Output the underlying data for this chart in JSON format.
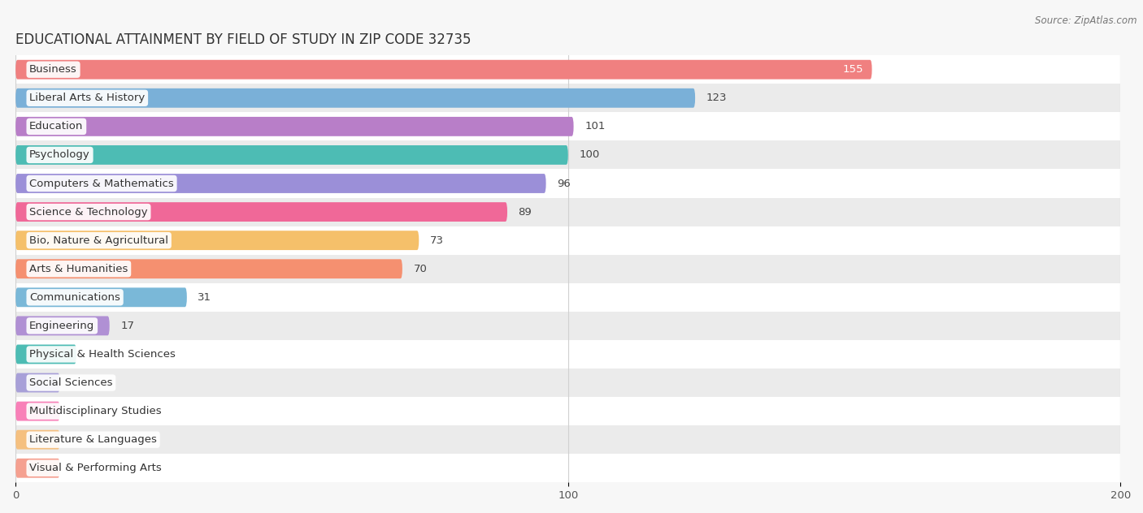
{
  "title": "EDUCATIONAL ATTAINMENT BY FIELD OF STUDY IN ZIP CODE 32735",
  "source": "Source: ZipAtlas.com",
  "categories": [
    "Business",
    "Liberal Arts & History",
    "Education",
    "Psychology",
    "Computers & Mathematics",
    "Science & Technology",
    "Bio, Nature & Agricultural",
    "Arts & Humanities",
    "Communications",
    "Engineering",
    "Physical & Health Sciences",
    "Social Sciences",
    "Multidisciplinary Studies",
    "Literature & Languages",
    "Visual & Performing Arts"
  ],
  "values": [
    155,
    123,
    101,
    100,
    96,
    89,
    73,
    70,
    31,
    17,
    11,
    0,
    0,
    0,
    0
  ],
  "colors": [
    "#f08080",
    "#7ab0d8",
    "#b87ec8",
    "#4dbcb4",
    "#9b8fd8",
    "#f06898",
    "#f5c06a",
    "#f59070",
    "#7ab8d8",
    "#b090d4",
    "#4dbcb4",
    "#a8a0d8",
    "#f880b8",
    "#f5c080",
    "#f5a090"
  ],
  "xlim": [
    0,
    200
  ],
  "xticks": [
    0,
    100,
    200
  ],
  "bar_height": 0.68,
  "background_color": "#f7f7f7",
  "row_bg_even": "#ffffff",
  "row_bg_odd": "#ebebeb",
  "title_fontsize": 12,
  "label_fontsize": 9.5,
  "value_fontsize": 9.5,
  "value_inside_threshold": 130
}
